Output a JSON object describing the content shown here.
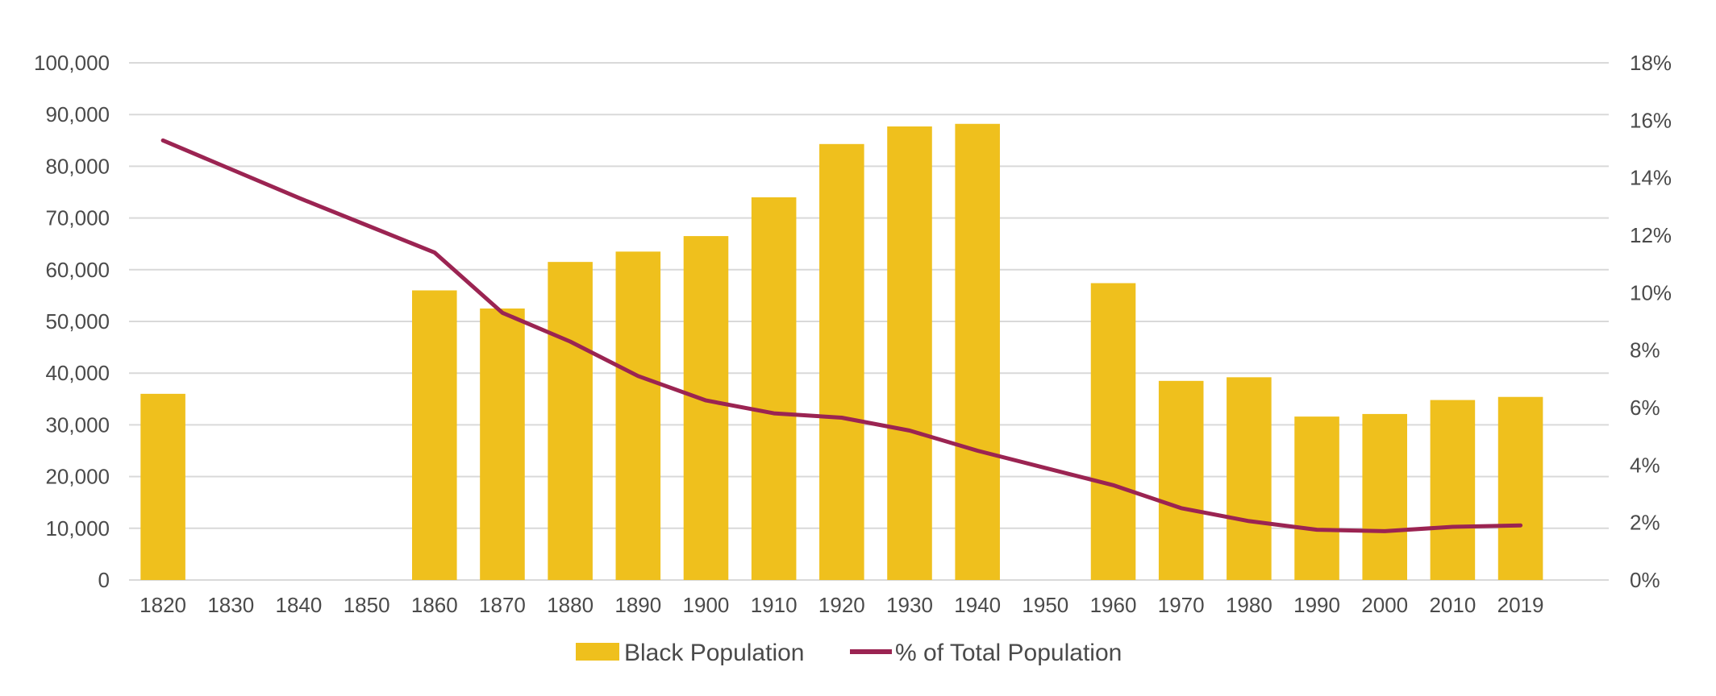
{
  "chart_data": {
    "type": "bar",
    "title": "",
    "categories": [
      "1820",
      "1830",
      "1840",
      "1850",
      "1860",
      "1870",
      "1880",
      "1890",
      "1900",
      "1910",
      "1920",
      "1930",
      "1940",
      "1950",
      "1960",
      "1970",
      "1980",
      "1990",
      "2000",
      "2010",
      "2019"
    ],
    "series": [
      {
        "name": "Black Population",
        "type": "bar",
        "axis": "left",
        "color": "#EFC01D",
        "values": [
          36000,
          null,
          null,
          null,
          56000,
          52500,
          61500,
          63500,
          66500,
          74000,
          84300,
          87700,
          88200,
          null,
          57400,
          38500,
          39200,
          31600,
          32100,
          34800,
          35400
        ]
      },
      {
        "name": "% of Total Population",
        "type": "line",
        "axis": "right",
        "color": "#9B2452",
        "values": [
          15.3,
          14.3,
          13.3,
          12.35,
          11.4,
          9.3,
          8.3,
          7.1,
          6.25,
          5.8,
          5.65,
          5.2,
          4.5,
          3.9,
          3.3,
          2.5,
          2.05,
          1.75,
          1.7,
          1.85,
          1.9
        ]
      }
    ],
    "y_left": {
      "ylim": [
        0,
        100000
      ],
      "ticks": [
        0,
        10000,
        20000,
        30000,
        40000,
        50000,
        60000,
        70000,
        80000,
        90000,
        100000
      ],
      "tick_labels": [
        "0",
        "10,000",
        "20,000",
        "30,000",
        "40,000",
        "50,000",
        "60,000",
        "70,000",
        "80,000",
        "90,000",
        "100,000"
      ]
    },
    "y_right": {
      "ylim": [
        0,
        18
      ],
      "ticks": [
        0,
        2,
        4,
        6,
        8,
        10,
        12,
        14,
        16,
        18
      ],
      "tick_labels": [
        "0%",
        "2%",
        "4%",
        "6%",
        "8%",
        "10%",
        "12%",
        "14%",
        "16%",
        "18%"
      ]
    },
    "grid": true,
    "legend": {
      "position": "bottom-center",
      "items": [
        {
          "label": "Black Population",
          "type": "bar",
          "color": "#EFC01D"
        },
        {
          "label": "% of Total Population",
          "type": "line",
          "color": "#9B2452"
        }
      ]
    },
    "colors": {
      "gridline": "#D9D9D9",
      "text": "#4A4A4A"
    }
  }
}
